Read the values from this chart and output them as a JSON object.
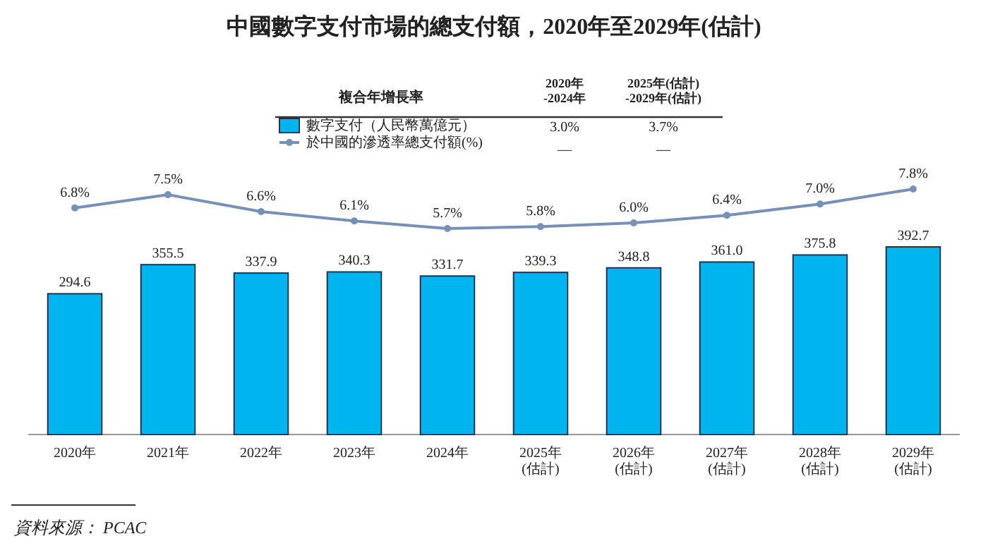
{
  "chart_data": [
    {
      "type": "bar",
      "categories": [
        "2020年",
        "2021年",
        "2022年",
        "2023年",
        "2024年",
        "2025年\n(估計)",
        "2026年\n(估計)",
        "2027年\n(估計)",
        "2028年\n(估計)",
        "2029年\n(估計)"
      ],
      "series": [
        {
          "name": "數字支付（人民幣萬億元）",
          "color": "#00b4ef",
          "values": [
            294.6,
            355.5,
            337.9,
            340.3,
            331.7,
            339.3,
            348.8,
            361.0,
            375.8,
            392.7
          ],
          "value_labels": [
            "294.6",
            "355.5",
            "337.9",
            "340.3",
            "331.7",
            "339.3",
            "348.8",
            "361.0",
            "375.8",
            "392.7"
          ]
        }
      ],
      "legend": "top",
      "annotations": [
        "複合年增長率",
        "2020年\n-2024年",
        "2025年(估計)\n-2029年(估計)",
        "3.0%",
        "3.7%",
        "—",
        "—",
        "資料來源： PCAC"
      ]
    },
    {
      "type": "line",
      "title": "中國數字支付市場的總支付額，2020年至2029年(估計)",
      "categories": [
        null,
        null,
        null,
        null,
        null,
        null,
        null,
        null,
        null,
        null
      ],
      "series": [
        {
          "name": "於中國的滲透率總支付額(%)",
          "color": "#7690b8",
          "values": [
            6.8,
            7.5,
            6.6,
            6.1,
            5.7,
            5.8,
            6.0,
            6.4,
            7.0,
            7.8
          ],
          "value_labels": [
            "6.8%",
            "7.5%",
            "6.6%",
            "6.1%",
            "5.7%",
            "5.8%",
            "6.0%",
            "6.4%",
            "7.0%",
            "7.8%"
          ]
        }
      ],
      "tick_labels": false,
      "marker": "circle",
      "legend": "top"
    }
  ]
}
